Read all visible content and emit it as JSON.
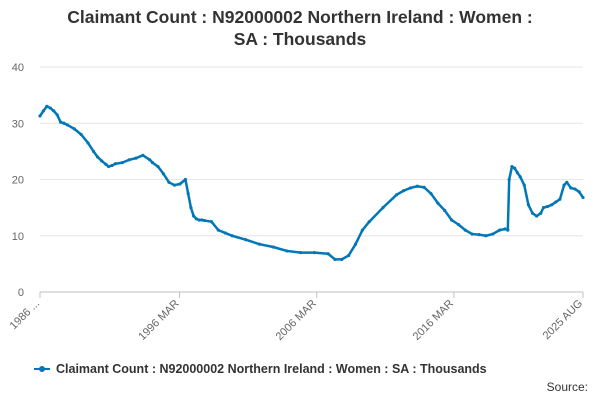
{
  "chart_data": {
    "type": "line",
    "title_lines": [
      "Claimant Count : N92000002 Northern Ireland : Women :",
      "SA : Thousands"
    ],
    "xlabel": "",
    "ylabel": "",
    "ylim": [
      0,
      40
    ],
    "yticks": [
      0,
      10,
      20,
      30,
      40
    ],
    "x_tick_labels": [
      "1986 ...",
      "1996 MAR",
      "2006 MAR",
      "2016 MAR",
      "2025 AUG"
    ],
    "x_tick_positions": [
      1986.0,
      1996.17,
      2006.17,
      2016.17,
      2025.58
    ],
    "grid": true,
    "legend_position": "bottom",
    "source_label": "Source:",
    "series": [
      {
        "name": "Claimant Count : N92000002 Northern Ireland : Women : SA : Thousands",
        "color": "#0077b6",
        "x": [
          1986.0,
          1986.25,
          1986.5,
          1986.75,
          1987.0,
          1987.25,
          1987.5,
          1987.75,
          1988.0,
          1988.5,
          1989.0,
          1989.5,
          1989.9,
          1990.2,
          1990.5,
          1990.8,
          1991.0,
          1991.25,
          1991.5,
          1992.0,
          1992.5,
          1993.0,
          1993.5,
          1994.0,
          1994.2,
          1994.6,
          1995.0,
          1995.4,
          1995.8,
          1996.2,
          1996.6,
          1996.8,
          1997.0,
          1997.2,
          1997.4,
          1997.6,
          1997.8,
          1998.0,
          1998.5,
          1999.0,
          1999.5,
          2000.0,
          2001.0,
          2002.0,
          2003.0,
          2004.0,
          2005.0,
          2006.0,
          2007.0,
          2007.5,
          2008.0,
          2008.5,
          2009.0,
          2009.5,
          2010.0,
          2011.0,
          2012.0,
          2012.5,
          2013.0,
          2013.5,
          2014.0,
          2014.5,
          2015.0,
          2015.5,
          2016.0,
          2016.5,
          2017.0,
          2017.5,
          2018.0,
          2018.5,
          2019.0,
          2019.5,
          2019.9,
          2020.1,
          2020.2,
          2020.4,
          2020.6,
          2020.8,
          2021.0,
          2021.3,
          2021.6,
          2021.9,
          2022.2,
          2022.5,
          2022.7,
          2023.0,
          2023.3,
          2023.6,
          2023.9,
          2024.2,
          2024.4,
          2024.7,
          2025.0,
          2025.3,
          2025.58
        ],
        "values": [
          31.3,
          32.2,
          33.0,
          32.7,
          32.2,
          31.5,
          30.2,
          30.0,
          29.7,
          29.0,
          28.0,
          26.5,
          25.0,
          24.0,
          23.3,
          22.7,
          22.3,
          22.5,
          22.8,
          23.0,
          23.5,
          23.8,
          24.3,
          23.5,
          23.0,
          22.3,
          21.0,
          19.5,
          19.0,
          19.2,
          20.0,
          17.5,
          15.0,
          13.5,
          13.0,
          12.8,
          12.8,
          12.7,
          12.5,
          11.0,
          10.5,
          10.0,
          9.3,
          8.5,
          8.0,
          7.3,
          7.0,
          7.0,
          6.8,
          5.8,
          5.8,
          6.5,
          8.5,
          11.0,
          12.5,
          15.0,
          17.3,
          18.0,
          18.5,
          18.8,
          18.6,
          17.5,
          15.8,
          14.5,
          12.8,
          12.0,
          11.0,
          10.3,
          10.2,
          10.0,
          10.3,
          11.0,
          11.2,
          11.0,
          20.0,
          22.3,
          22.0,
          21.2,
          20.5,
          19.0,
          15.5,
          14.0,
          13.5,
          14.0,
          15.0,
          15.2,
          15.5,
          16.0,
          16.5,
          19.0,
          19.5,
          18.5,
          18.3,
          17.8,
          16.8
        ]
      }
    ]
  }
}
